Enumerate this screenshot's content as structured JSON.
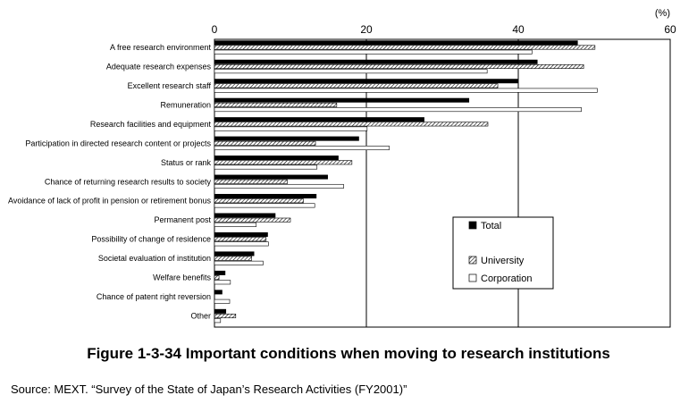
{
  "figure": {
    "caption": "Figure 1-3-34 Important conditions when moving to research institutions",
    "source": "Source: MEXT. “Survey of the State of Japan’s Research Activities (FY2001)”"
  },
  "chart_data": {
    "type": "bar",
    "orientation": "horizontal",
    "unit_label": "(%)",
    "xlim": [
      0,
      60
    ],
    "xticks": [
      0,
      20,
      40,
      60
    ],
    "grid": "vertical",
    "legend_position": "lower-right inside",
    "categories": [
      "A free research environment",
      "Adequate research expenses",
      "Excellent research staff",
      "Remuneration",
      "Research facilities and equipment",
      "Participation in directed research content or projects",
      "Status or rank",
      "Chance of returning research results to society",
      "Avoidance of lack of profit in pension or retirement bonus",
      "Permanent post",
      "Possibility of change of residence",
      "Societal evaluation of institution",
      "Welfare benefits",
      "Chance of patent right reversion",
      "Other"
    ],
    "series": [
      {
        "name": "Total",
        "fill": "#000000",
        "values": [
          47.8,
          42.5,
          39.9,
          33.5,
          27.6,
          19.0,
          16.3,
          14.9,
          13.4,
          8.0,
          7.0,
          5.2,
          1.4,
          1.0,
          1.5
        ]
      },
      {
        "name": "University",
        "fill": "hatch",
        "values": [
          50.1,
          48.6,
          37.3,
          16.1,
          36.0,
          13.3,
          18.1,
          9.6,
          11.7,
          10.0,
          6.8,
          4.9,
          0.6,
          0.0,
          2.8
        ]
      },
      {
        "name": "Corporation",
        "fill": "#ffffff",
        "values": [
          41.8,
          35.9,
          50.4,
          48.3,
          20.1,
          23.0,
          13.5,
          17.0,
          13.2,
          5.5,
          7.1,
          6.4,
          2.1,
          2.0,
          0.8
        ]
      }
    ]
  }
}
